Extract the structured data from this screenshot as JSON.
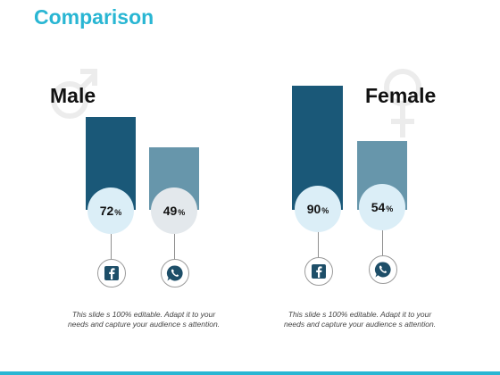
{
  "title": "Comparison",
  "colors": {
    "accent": "#29b6d3",
    "bar_dark": "#1a5878",
    "bar_light": "#6796ab",
    "circle_light_blue": "#dbeef7",
    "circle_light_gray": "#e3e8ec",
    "icon_dark": "#1d4e68"
  },
  "pct_symbol": "%",
  "chart_data": [
    {
      "type": "bar",
      "categories": [
        "facebook-icon",
        "whatsapp-icon"
      ],
      "values": [
        72,
        49
      ],
      "title": "Male",
      "caption": [
        "This slide s 100% editable. Adapt it to your",
        "needs and capture your audience s attention."
      ]
    },
    {
      "type": "bar",
      "categories": [
        "facebook-icon",
        "whatsapp-icon"
      ],
      "values": [
        90,
        54
      ],
      "title": "Female",
      "caption": [
        "This slide s 100% editable. Adapt it to your",
        "needs and capture your audience s attention."
      ]
    }
  ]
}
